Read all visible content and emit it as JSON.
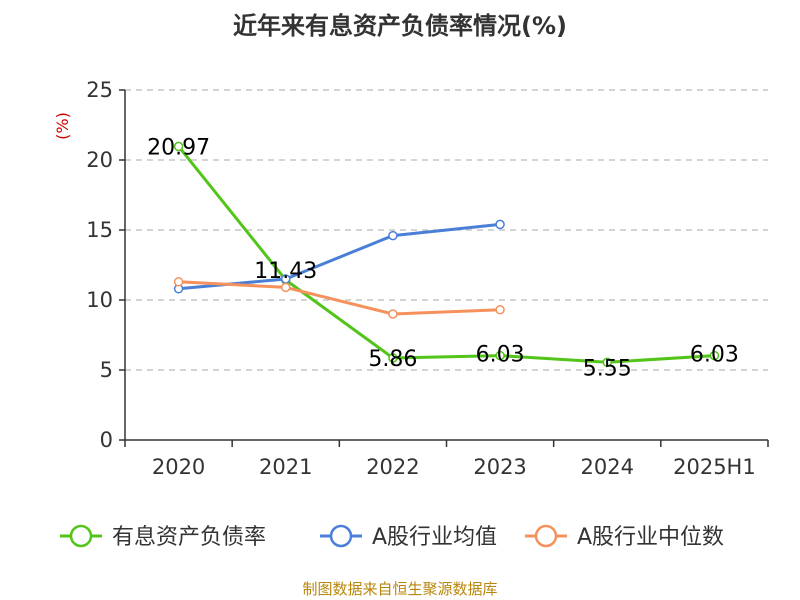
{
  "chart_data": {
    "type": "line",
    "title": "近年来有息资产负债率情况(%)",
    "ylabel": "(%)",
    "categories": [
      "2020",
      "2021",
      "2022",
      "2023",
      "2024",
      "2025H1"
    ],
    "ylim": [
      0,
      25
    ],
    "yticks": [
      0,
      5,
      10,
      15,
      20,
      25
    ],
    "grid": true,
    "legend_position": "bottom",
    "series": [
      {
        "name": "有息资产负债率",
        "color": "#52c41a",
        "values": [
          20.97,
          11.43,
          5.86,
          6.03,
          5.55,
          6.03
        ],
        "labels": [
          "20.97",
          "11.43",
          "5.86",
          "6.03",
          "5.55",
          "6.03"
        ]
      },
      {
        "name": "A股行业均值",
        "color": "#4a7fd8",
        "values": [
          10.8,
          11.5,
          14.6,
          15.4,
          null,
          null
        ]
      },
      {
        "name": "A股行业中位数",
        "color": "#f5915c",
        "values": [
          11.3,
          10.9,
          9.0,
          9.3,
          null,
          null
        ]
      }
    ]
  },
  "source": "制图数据来自恒生聚源数据库"
}
